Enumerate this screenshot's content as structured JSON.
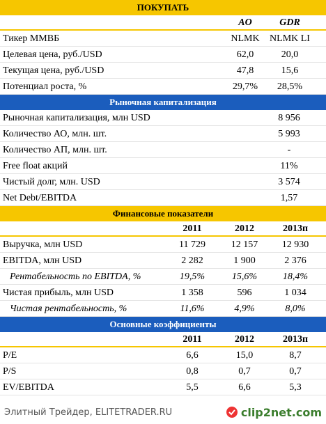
{
  "sections": [
    {
      "title": "ПОКУПАТЬ",
      "header_color": "#f6c600",
      "columns": [
        "AO",
        "GDR"
      ],
      "rows": [
        [
          "Тикер ММВБ",
          "NLMK",
          "NLMK LI"
        ],
        [
          "Целевая цена, руб./USD",
          "62,0",
          "20,0"
        ],
        [
          "Текущая цена, руб./USD",
          "47,8",
          "15,6"
        ],
        [
          "Потенциал роста, %",
          "29,7%",
          "28,5%"
        ]
      ]
    },
    {
      "title": "Рыночная капитализация",
      "header_color": "#1b5dbd",
      "rows": [
        [
          "Рыночная капитализация, млн USD",
          "8 956"
        ],
        [
          "Количество АО, млн. шт.",
          "5 993"
        ],
        [
          "Количество АП, млн. шт.",
          "-"
        ],
        [
          "Free float акций",
          "11%"
        ],
        [
          "Чистый долг, млн. USD",
          "3 574"
        ],
        [
          "Net Debt/EBITDA",
          "1,57"
        ]
      ]
    },
    {
      "title": "Финансовые показатели",
      "header_color": "#f6c600",
      "columns": [
        "2011",
        "2012",
        "2013п"
      ],
      "italic_rows": [
        2,
        4
      ],
      "rows": [
        [
          "Выручка, млн USD",
          "11 729",
          "12 157",
          "12 930"
        ],
        [
          "EBITDA, млн USD",
          "2 282",
          "1 900",
          "2 376"
        ],
        [
          "Рентабельность по EBITDA, %",
          "19,5%",
          "15,6%",
          "18,4%"
        ],
        [
          "Чистая прибыль, млн USD",
          "1 358",
          "596",
          "1 034"
        ],
        [
          "Чистая рентабельность, %",
          "11,6%",
          "4,9%",
          "8,0%"
        ]
      ]
    },
    {
      "title": "Основные коэффициенты",
      "header_color": "#1b5dbd",
      "columns": [
        "2011",
        "2012",
        "2013п"
      ],
      "rows": [
        [
          "P/E",
          "6,6",
          "15,0",
          "8,7"
        ],
        [
          "P/S",
          "0,8",
          "0,7",
          "0,7"
        ],
        [
          "EV/EBITDA",
          "5,5",
          "6,6",
          "5,3"
        ]
      ]
    }
  ],
  "footer": {
    "source": "Элитный Трейдер, ELITETRADER.RU",
    "logo": "clip2net.com"
  }
}
